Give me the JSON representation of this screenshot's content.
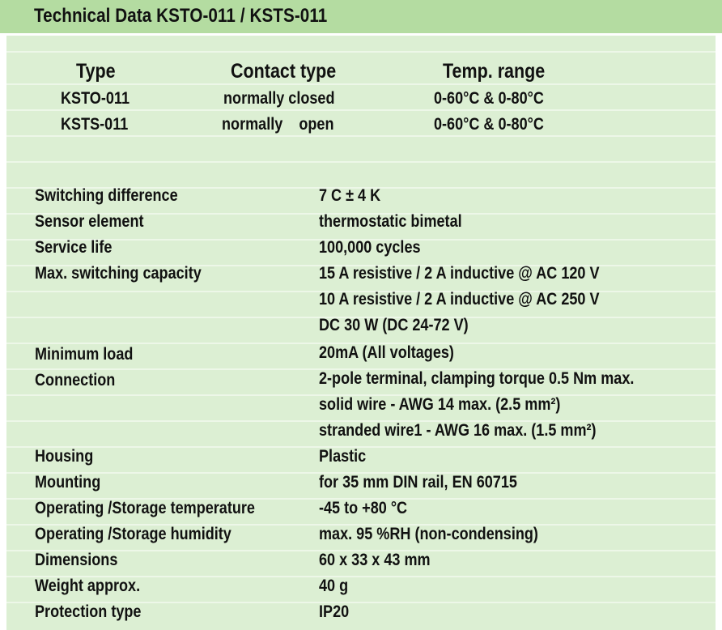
{
  "title": "Technical Data KSTO-011 / KSTS-011",
  "types_table": {
    "headers": [
      "Type",
      "Contact type",
      "Temp. range"
    ],
    "rows": [
      [
        "KSTO-011",
        "normally closed",
        "0-60°C & 0-80°C"
      ],
      [
        "KSTS-011",
        "normally    open",
        "0-60°C & 0-80°C"
      ]
    ]
  },
  "specs": [
    {
      "label": "Switching difference",
      "values": [
        "7 C ± 4 K"
      ]
    },
    {
      "label": "Sensor element",
      "values": [
        "thermostatic bimetal"
      ]
    },
    {
      "label": "Service life",
      "values": [
        "100,000 cycles"
      ]
    },
    {
      "label": "Max. switching capacity",
      "values": [
        "15 A resistive / 2 A inductive @ AC 120 V",
        "10 A resistive / 2 A inductive @ AC 250 V",
        "DC 30 W (DC 24-72 V)"
      ]
    },
    {
      "label": "Minimum load",
      "values": [
        "20mA (All voltages)"
      ]
    },
    {
      "label": "Connection",
      "values": [
        "2-pole terminal, clamping torque 0.5 Nm max.",
        "solid wire - AWG 14 max. (2.5 mm²)",
        "stranded wire1 - AWG 16 max. (1.5 mm²)"
      ]
    },
    {
      "label": "Housing",
      "values": [
        "Plastic"
      ]
    },
    {
      "label": "Mounting",
      "values": [
        "for 35 mm DIN rail, EN 60715"
      ]
    },
    {
      "label": "Operating /Storage temperature",
      "values": [
        "-45 to +80 °C"
      ]
    },
    {
      "label": "Operating /Storage humidity",
      "values": [
        "max. 95 %RH (non-condensing)"
      ]
    },
    {
      "label": "Dimensions",
      "values": [
        "60 x 33 x 43 mm"
      ]
    },
    {
      "label": "Weight approx.",
      "values": [
        "40 g"
      ]
    },
    {
      "label": "Protection type",
      "values": [
        "IP20"
      ]
    }
  ],
  "colors": {
    "header_bg": "#b4dca1",
    "panel_bg": "#dcefd3",
    "stripe": "#edf7e8",
    "text": "#111111"
  }
}
